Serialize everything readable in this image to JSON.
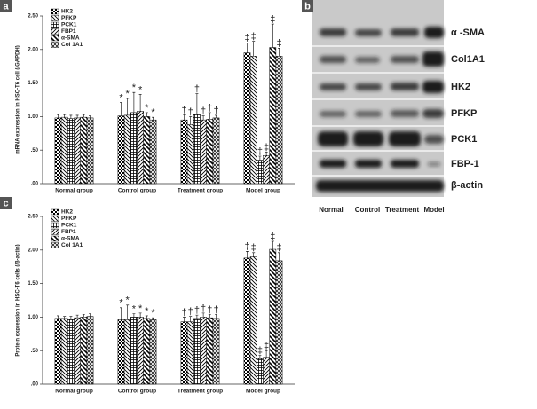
{
  "panels": [
    "a",
    "b",
    "c"
  ],
  "chart_data": [
    {
      "type": "bar",
      "ylabel": "mRNA expression in HSC-T6 cell (/GAPDH)",
      "categories": [
        "Normal group",
        "Control group",
        "Treatment group",
        "Model group"
      ],
      "ylim": [
        0,
        2.5
      ],
      "yticks": [
        {
          "value": 0,
          "label": ".00"
        },
        {
          "value": 0.5,
          "label": ".50"
        },
        {
          "value": 1,
          "label": "1.00"
        },
        {
          "value": 1.5,
          "label": "1.50"
        },
        {
          "value": 2,
          "label": "2.00"
        },
        {
          "value": 2.5,
          "label": "2.50"
        }
      ],
      "legend": "upper left",
      "series": [
        {
          "name": "HK2",
          "pattern": "checker",
          "values": [
            0.98,
            1.01,
            0.95,
            1.95
          ],
          "errors": [
            0.05,
            0.2,
            0.08,
            0.15
          ],
          "annotations": [
            null,
            "*",
            "†",
            "‡"
          ]
        },
        {
          "name": "PFKP",
          "pattern": "back",
          "values": [
            0.99,
            1.02,
            0.88,
            1.9
          ],
          "errors": [
            0.04,
            0.25,
            0.12,
            0.22
          ],
          "annotations": [
            null,
            "*",
            "†",
            "‡"
          ]
        },
        {
          "name": "PCK1",
          "pattern": "grid",
          "values": [
            0.97,
            1.06,
            1.04,
            0.35
          ],
          "errors": [
            0.05,
            0.3,
            0.3,
            0.06
          ],
          "annotations": [
            null,
            "*",
            "†",
            "‡"
          ]
        },
        {
          "name": "FBP1",
          "pattern": "fwd",
          "values": [
            0.98,
            1.08,
            0.95,
            0.42
          ],
          "errors": [
            0.04,
            0.25,
            0.06,
            0.05
          ],
          "annotations": [
            null,
            "*",
            "†",
            "‡"
          ]
        },
        {
          "name": "α-SMA",
          "pattern": "backthick",
          "values": [
            0.99,
            1.0,
            0.96,
            2.03
          ],
          "errors": [
            0.04,
            0.06,
            0.1,
            0.35
          ],
          "annotations": [
            null,
            "*",
            "†",
            "‡"
          ]
        },
        {
          "name": "Col 1A1",
          "pattern": "cross",
          "values": [
            0.98,
            0.95,
            0.98,
            1.9
          ],
          "errors": [
            0.03,
            0.04,
            0.04,
            0.12
          ],
          "annotations": [
            null,
            "*",
            "†",
            "‡"
          ]
        }
      ]
    },
    {
      "type": "bar",
      "ylabel": "Protein expression in HSC-T6 cells (/β-actin)",
      "categories": [
        "Normal group",
        "Control group",
        "Treatment group",
        "Model group"
      ],
      "ylim": [
        0,
        2.5
      ],
      "yticks": [
        {
          "value": 0,
          "label": ".00"
        },
        {
          "value": 0.5,
          "label": ".50"
        },
        {
          "value": 1,
          "label": "1.00"
        },
        {
          "value": 1.5,
          "label": "1.50"
        },
        {
          "value": 2,
          "label": "2.00"
        },
        {
          "value": 2.5,
          "label": "2.50"
        }
      ],
      "legend": "upper left",
      "series": [
        {
          "name": "HK2",
          "pattern": "checker",
          "values": [
            0.98,
            0.96,
            0.93,
            1.88
          ],
          "errors": [
            0.04,
            0.18,
            0.07,
            0.1
          ],
          "annotations": [
            null,
            "*",
            "†",
            "‡"
          ]
        },
        {
          "name": "PFKP",
          "pattern": "back",
          "values": [
            0.98,
            0.96,
            0.93,
            1.9
          ],
          "errors": [
            0.03,
            0.22,
            0.08,
            0.06
          ],
          "annotations": [
            null,
            "*",
            "†",
            "‡"
          ]
        },
        {
          "name": "PCK1",
          "pattern": "grid",
          "values": [
            0.97,
            1.0,
            0.98,
            0.38
          ],
          "errors": [
            0.04,
            0.05,
            0.05,
            0.05
          ],
          "annotations": [
            null,
            "*",
            "†",
            "‡"
          ]
        },
        {
          "name": "FBP1",
          "pattern": "fwd",
          "values": [
            0.99,
            1.0,
            1.0,
            0.4
          ],
          "errors": [
            0.04,
            0.06,
            0.06,
            0.1
          ],
          "annotations": [
            null,
            "*",
            "†",
            "‡"
          ]
        },
        {
          "name": "α-SMA",
          "pattern": "backthick",
          "values": [
            1.0,
            0.98,
            0.99,
            2.01
          ],
          "errors": [
            0.04,
            0.04,
            0.05,
            0.12
          ],
          "annotations": [
            null,
            "*",
            "†",
            "‡"
          ]
        },
        {
          "name": "Col 1A1",
          "pattern": "cross",
          "values": [
            1.01,
            0.96,
            0.98,
            1.84
          ],
          "errors": [
            0.04,
            0.03,
            0.06,
            0.12
          ],
          "annotations": [
            null,
            "*",
            "†",
            "‡"
          ]
        }
      ]
    }
  ],
  "blot": {
    "proteins": [
      "α -SMA",
      "Col1A1",
      "HK2",
      "PFKP",
      "PCK1",
      "FBP-1",
      "β-actin"
    ],
    "lanes": [
      "Normal",
      "Control",
      "Treatment",
      "Model"
    ]
  }
}
